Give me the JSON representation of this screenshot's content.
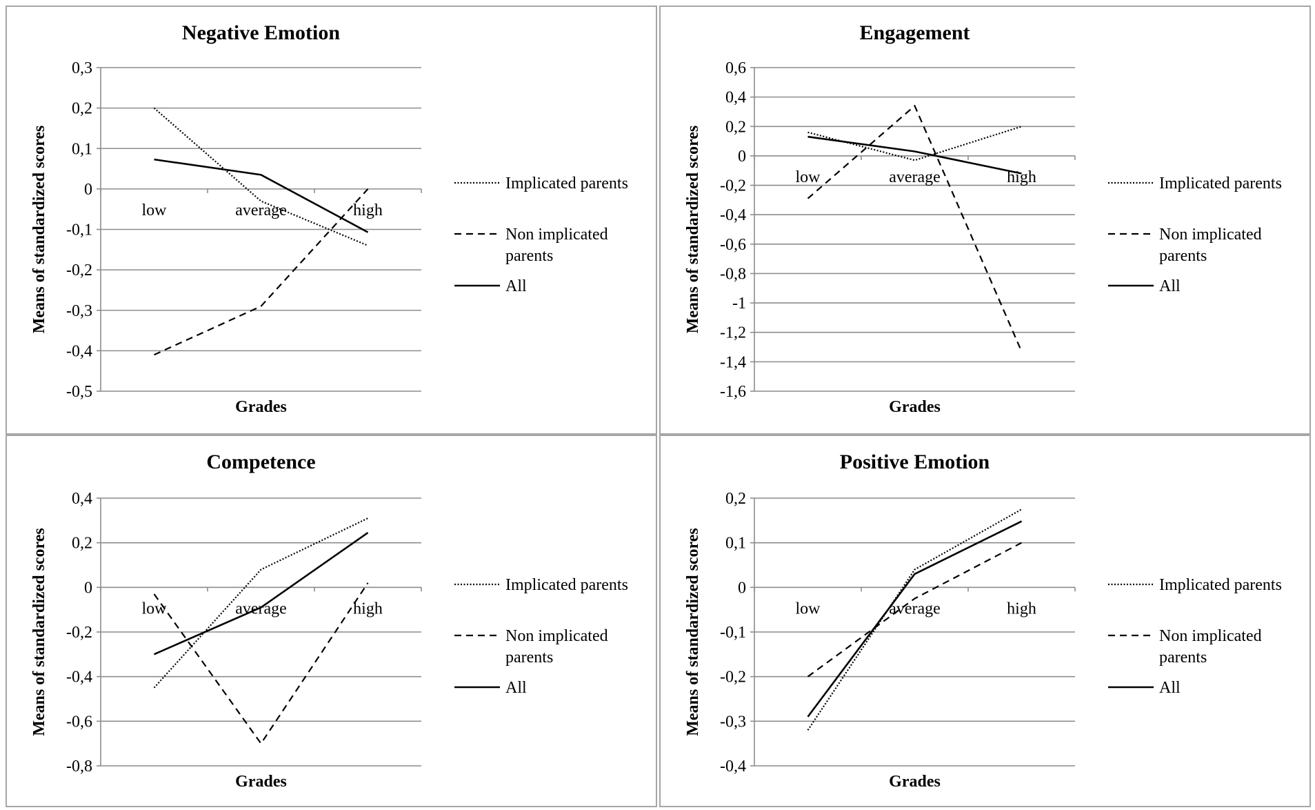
{
  "legend": {
    "implicated": "Implicated parents",
    "non_implicated_line1": "Non implicated",
    "non_implicated_line2": "parents",
    "all": "All"
  },
  "chart_data": [
    {
      "type": "line",
      "title": "Negative Emotion",
      "xlabel": "Grades",
      "ylabel": "Means of standardized scores",
      "categories": [
        "low",
        "average",
        "high"
      ],
      "ylim": [
        -0.5,
        0.3
      ],
      "ystep": 0.1,
      "yticks": [
        "0,3",
        "0,2",
        "0,1",
        "0",
        "-0,1",
        "-0,2",
        "-0,3",
        "-0,4",
        "-0,5"
      ],
      "grid": true,
      "legend_position": "right",
      "series": [
        {
          "name": "Implicated parents",
          "style": "dotted",
          "values": [
            0.2,
            -0.03,
            -0.14
          ]
        },
        {
          "name": "Non implicated parents",
          "style": "dashed",
          "values": [
            -0.41,
            -0.29,
            0.0
          ]
        },
        {
          "name": "All",
          "style": "solid",
          "values": [
            0.073,
            0.035,
            -0.107
          ]
        }
      ]
    },
    {
      "type": "line",
      "title": "Engagement",
      "xlabel": "Grades",
      "ylabel": "Means of standardized scores",
      "categories": [
        "low",
        "average",
        "high"
      ],
      "ylim": [
        -1.6,
        0.6
      ],
      "ystep": 0.2,
      "yticks": [
        "0,6",
        "0,4",
        "0,2",
        "0",
        "-0,2",
        "-0,4",
        "-0,6",
        "-0,8",
        "-1",
        "-1,2",
        "-1,4",
        "-1,6"
      ],
      "grid": true,
      "legend_position": "right",
      "series": [
        {
          "name": "Implicated parents",
          "style": "dotted",
          "values": [
            0.16,
            -0.03,
            0.2
          ]
        },
        {
          "name": "Non implicated parents",
          "style": "dashed",
          "values": [
            -0.29,
            0.34,
            -1.33
          ]
        },
        {
          "name": "All",
          "style": "solid",
          "values": [
            0.13,
            0.03,
            -0.12
          ]
        }
      ]
    },
    {
      "type": "line",
      "title": "Competence",
      "xlabel": "Grades",
      "ylabel": "Means of standardized scores",
      "categories": [
        "low",
        "average",
        "high"
      ],
      "ylim": [
        -0.8,
        0.4
      ],
      "ystep": 0.2,
      "yticks": [
        "0,4",
        "0,2",
        "0",
        "-0,2",
        "-0,4",
        "-0,6",
        "-0,8"
      ],
      "grid": true,
      "legend_position": "right",
      "series": [
        {
          "name": "Implicated parents",
          "style": "dotted",
          "values": [
            -0.45,
            0.08,
            0.31
          ]
        },
        {
          "name": "Non implicated parents",
          "style": "dashed",
          "values": [
            -0.03,
            -0.7,
            0.02
          ]
        },
        {
          "name": "All",
          "style": "solid",
          "values": [
            -0.3,
            -0.09,
            0.245
          ]
        }
      ]
    },
    {
      "type": "line",
      "title": "Positive Emotion",
      "xlabel": "Grades",
      "ylabel": "Means of standardized scores",
      "categories": [
        "low",
        "average",
        "high"
      ],
      "ylim": [
        -0.4,
        0.2
      ],
      "ystep": 0.1,
      "yticks": [
        "0,2",
        "0,1",
        "0",
        "-0,1",
        "-0,2",
        "-0,3",
        "-0,4"
      ],
      "grid": true,
      "legend_position": "right",
      "series": [
        {
          "name": "Implicated parents",
          "style": "dotted",
          "values": [
            -0.32,
            0.04,
            0.175
          ]
        },
        {
          "name": "Non implicated parents",
          "style": "dashed",
          "values": [
            -0.2,
            -0.025,
            0.1
          ]
        },
        {
          "name": "All",
          "style": "solid",
          "values": [
            -0.29,
            0.03,
            0.148
          ]
        }
      ]
    }
  ]
}
